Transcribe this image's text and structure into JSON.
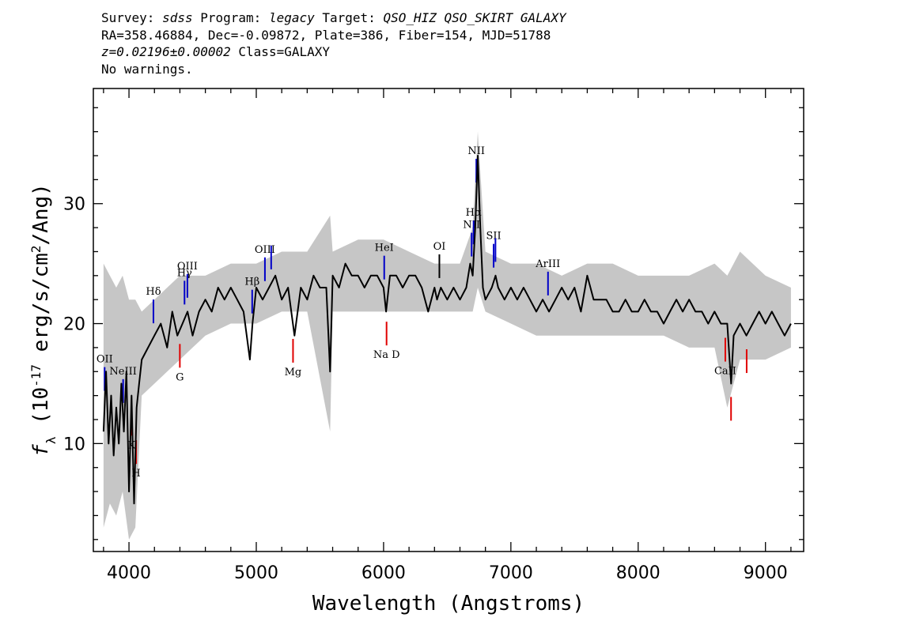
{
  "header": {
    "survey_label": "Survey:",
    "survey": "sdss",
    "program_label": "Program:",
    "program": "legacy",
    "target_label": "Target:",
    "target": "QSO_HIZ QSO_SKIRT GALAXY",
    "coords": "RA=358.46884, Dec=-0.09872, Plate=386, Fiber=154, MJD=51788",
    "redshift": "z=0.02196±0.00002",
    "class": "Class=GALAXY",
    "warnings": "No warnings."
  },
  "chart_data": {
    "type": "line",
    "xlabel": "Wavelength (Angstroms)",
    "ylabel": "f_λ (10^-17 erg/s/cm^2/Ang)",
    "xlim": [
      3720,
      9300
    ],
    "ylim": [
      1,
      39.6
    ],
    "x_ticks": [
      4000,
      5000,
      6000,
      7000,
      8000,
      9000
    ],
    "y_ticks": [
      10,
      20,
      30
    ],
    "x_tick_labels": [
      "4000",
      "5000",
      "6000",
      "7000",
      "8000",
      "9000"
    ],
    "y_tick_labels": [
      "10",
      "20",
      "30"
    ],
    "colors": {
      "spectrum": "#000000",
      "error": "#c0c0c0",
      "emission": "#0000c8",
      "absorption": "#e00000",
      "neutral": "#000000"
    },
    "series": [
      {
        "name": "flux",
        "x": [
          3800,
          3820,
          3840,
          3860,
          3880,
          3900,
          3920,
          3940,
          3960,
          3980,
          4000,
          4020,
          4040,
          4060,
          4080,
          4100,
          4150,
          4200,
          4250,
          4300,
          4340,
          4380,
          4420,
          4460,
          4500,
          4550,
          4600,
          4650,
          4700,
          4750,
          4800,
          4850,
          4900,
          4950,
          4970,
          5000,
          5050,
          5100,
          5150,
          5200,
          5250,
          5300,
          5350,
          5400,
          5450,
          5500,
          5550,
          5580,
          5600,
          5650,
          5700,
          5750,
          5800,
          5850,
          5900,
          5950,
          6000,
          6020,
          6050,
          6100,
          6150,
          6200,
          6250,
          6300,
          6350,
          6400,
          6420,
          6450,
          6500,
          6550,
          6600,
          6650,
          6680,
          6700,
          6720,
          6740,
          6760,
          6780,
          6800,
          6850,
          6880,
          6900,
          6950,
          7000,
          7050,
          7100,
          7150,
          7200,
          7250,
          7300,
          7350,
          7400,
          7450,
          7500,
          7550,
          7600,
          7650,
          7700,
          7750,
          7800,
          7850,
          7900,
          7950,
          8000,
          8050,
          8100,
          8150,
          8200,
          8250,
          8300,
          8350,
          8400,
          8450,
          8500,
          8550,
          8600,
          8650,
          8700,
          8730,
          8750,
          8800,
          8850,
          8900,
          8950,
          9000,
          9050,
          9100,
          9150,
          9200
        ],
        "y": [
          11,
          16,
          10,
          14,
          9,
          13,
          10,
          15,
          11,
          16,
          6,
          14,
          5,
          13,
          15,
          17,
          18,
          19,
          20,
          18,
          21,
          19,
          20,
          21,
          19,
          21,
          22,
          21,
          23,
          22,
          23,
          22,
          21,
          17,
          20,
          23,
          22,
          23,
          24,
          22,
          23,
          19,
          23,
          22,
          24,
          23,
          23,
          16,
          24,
          23,
          25,
          24,
          24,
          23,
          24,
          24,
          23,
          21,
          24,
          24,
          23,
          24,
          24,
          23,
          21,
          23,
          22,
          23,
          22,
          23,
          22,
          23,
          25,
          24,
          28,
          34,
          28,
          23,
          22,
          23,
          24,
          23,
          22,
          23,
          22,
          23,
          22,
          21,
          22,
          21,
          22,
          23,
          22,
          23,
          21,
          24,
          22,
          22,
          22,
          21,
          21,
          22,
          21,
          21,
          22,
          21,
          21,
          20,
          21,
          22,
          21,
          22,
          21,
          21,
          20,
          21,
          20,
          20,
          15,
          19,
          20,
          19,
          20,
          21,
          20,
          21,
          20,
          19,
          20
        ]
      },
      {
        "name": "error",
        "x": [
          3800,
          3850,
          3900,
          3950,
          4000,
          4050,
          4100,
          4200,
          4300,
          4400,
          4500,
          4600,
          4800,
          5000,
          5200,
          5400,
          5580,
          5600,
          5800,
          5900,
          6000,
          6200,
          6400,
          6600,
          6700,
          6740,
          6800,
          7000,
          7200,
          7400,
          7600,
          7800,
          8000,
          8200,
          8400,
          8600,
          8700,
          8800,
          9000,
          9200
        ],
        "y_low": [
          3,
          5,
          4,
          6,
          2,
          3,
          14,
          15,
          16,
          17,
          18,
          19,
          20,
          20,
          21,
          21,
          11,
          21,
          21,
          21,
          21,
          21,
          21,
          21,
          21,
          23,
          21,
          20,
          19,
          19,
          19,
          19,
          19,
          19,
          18,
          18,
          13,
          17,
          17,
          18
        ],
        "y_high": [
          25,
          24,
          23,
          24,
          22,
          22,
          21,
          22,
          23,
          24,
          24,
          24,
          25,
          25,
          26,
          26,
          29,
          26,
          27,
          27,
          27,
          26,
          25,
          25,
          28,
          36,
          26,
          25,
          25,
          24,
          25,
          25,
          24,
          24,
          24,
          25,
          24,
          26,
          24,
          23
        ]
      }
    ],
    "line_markers": [
      {
        "label": "OII",
        "x": 3727,
        "kind": "emission",
        "label_pos": "above"
      },
      {
        "label": "NeIII",
        "x": 3869,
        "kind": "emission",
        "label_pos": "above"
      },
      {
        "label": "Hδ",
        "x": 4102,
        "kind": "emission",
        "label_pos": "above"
      },
      {
        "label": "Hγ",
        "x": 4341,
        "kind": "emission",
        "label_pos": "above"
      },
      {
        "label": "OIII",
        "x": 4363,
        "kind": "emission",
        "label_pos": "above"
      },
      {
        "label": "Hβ",
        "x": 4861,
        "kind": "emission",
        "label_pos": "above"
      },
      {
        "label": "OIII",
        "x": 4959,
        "kind": "emission",
        "label_pos": "above"
      },
      {
        "label": "",
        "x": 5007,
        "kind": "emission",
        "label_pos": "above"
      },
      {
        "label": "HeI",
        "x": 5876,
        "kind": "emission",
        "label_pos": "above"
      },
      {
        "label": "OI",
        "x": 6300,
        "kind": "neutral",
        "label_pos": "above"
      },
      {
        "label": "NII",
        "x": 6548,
        "kind": "emission",
        "label_pos": "above"
      },
      {
        "label": "Hα",
        "x": 6563,
        "kind": "emission",
        "label_pos": "above"
      },
      {
        "label": "NII",
        "x": 6584,
        "kind": "emission",
        "label_pos": "above"
      },
      {
        "label": "SII",
        "x": 6717,
        "kind": "emission",
        "label_pos": "above"
      },
      {
        "label": "",
        "x": 6731,
        "kind": "emission",
        "label_pos": "above"
      },
      {
        "label": "ArIII",
        "x": 7135,
        "kind": "emission",
        "label_pos": "above"
      },
      {
        "label": "K",
        "x": 3934,
        "kind": "absorption",
        "label_pos": "below"
      },
      {
        "label": "H",
        "x": 3969,
        "kind": "absorption",
        "label_pos": "below"
      },
      {
        "label": "G",
        "x": 4305,
        "kind": "absorption",
        "label_pos": "below"
      },
      {
        "label": "Mg",
        "x": 5175,
        "kind": "absorption",
        "label_pos": "below"
      },
      {
        "label": "Na D",
        "x": 5894,
        "kind": "absorption",
        "label_pos": "below"
      },
      {
        "label": "CaII",
        "x": 8498,
        "kind": "absorption",
        "label_pos": "below"
      },
      {
        "label": "",
        "x": 8542,
        "kind": "absorption",
        "label_pos": "below"
      },
      {
        "label": "",
        "x": 8662,
        "kind": "absorption",
        "label_pos": "below"
      }
    ]
  }
}
